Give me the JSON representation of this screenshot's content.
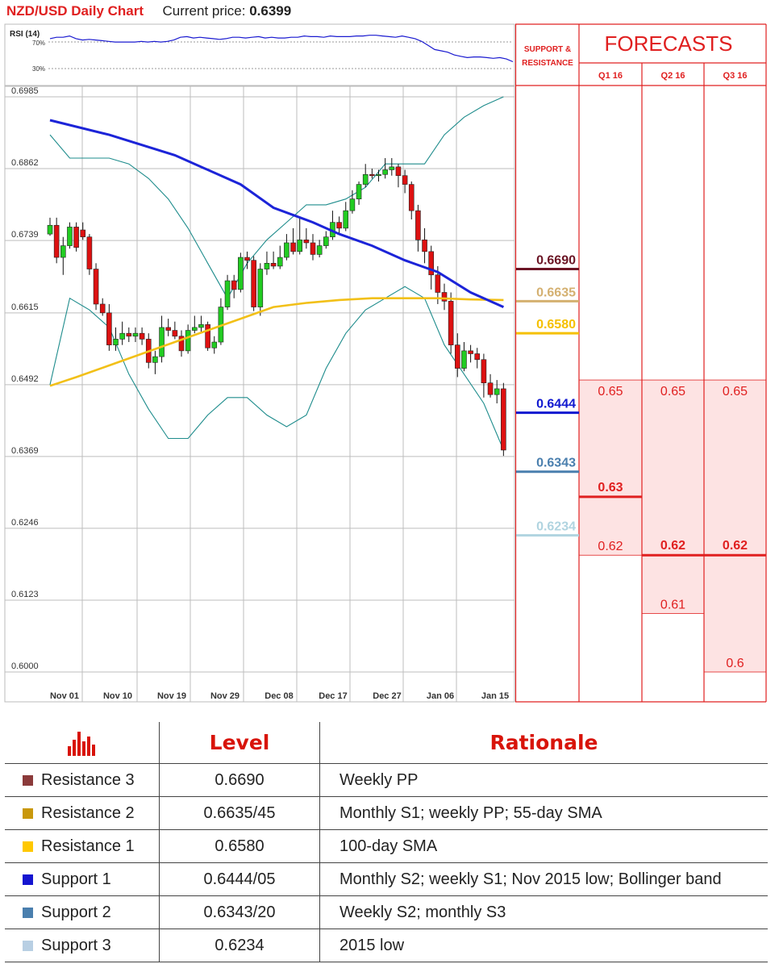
{
  "header": {
    "title": "NZD/USD Daily Chart",
    "price_label": "Current price:",
    "price": "0.6399"
  },
  "rsi": {
    "label": "RSI (14)",
    "upper": "70%",
    "lower": "30%",
    "values": [
      62,
      64,
      64,
      66,
      62,
      60,
      61,
      60,
      59,
      58,
      57,
      57,
      57,
      57,
      58,
      57,
      58,
      57,
      58,
      60,
      64,
      65,
      63,
      64,
      63,
      62,
      61,
      62,
      64,
      64,
      63,
      64,
      65,
      63,
      64,
      63,
      63,
      64,
      64,
      66,
      65,
      65,
      64,
      66,
      65,
      65,
      65,
      66,
      66,
      67,
      67,
      66,
      65,
      64,
      66,
      64,
      62,
      58,
      52,
      46,
      44,
      42,
      38,
      36,
      34,
      35,
      35,
      34,
      33,
      34,
      32,
      28
    ]
  },
  "chart_data": {
    "type": "candlestick",
    "title": "NZD/USD Daily Chart",
    "ylim": [
      0.6,
      0.6985
    ],
    "yticks": [
      "0.6985",
      "0.6862",
      "0.6739",
      "0.6615",
      "0.6492",
      "0.6369",
      "0.6246",
      "0.6123",
      "0.6000"
    ],
    "xticks": [
      "Nov 01",
      "Nov 10",
      "Nov 19",
      "Nov 29",
      "Dec 08",
      "Dec 17",
      "Dec 27",
      "Jan 06",
      "Jan 15"
    ],
    "candles": [
      [
        0.675,
        0.6765,
        0.6778,
        0.6747
      ],
      [
        0.6765,
        0.671,
        0.6778,
        0.67
      ],
      [
        0.671,
        0.673,
        0.6745,
        0.668
      ],
      [
        0.673,
        0.6762,
        0.677,
        0.6725
      ],
      [
        0.6762,
        0.6727,
        0.677,
        0.672
      ],
      [
        0.6757,
        0.6745,
        0.677,
        0.674
      ],
      [
        0.6745,
        0.669,
        0.675,
        0.668
      ],
      [
        0.669,
        0.663,
        0.67,
        0.662
      ],
      [
        0.663,
        0.6615,
        0.664,
        0.661
      ],
      [
        0.6615,
        0.656,
        0.663,
        0.655
      ],
      [
        0.656,
        0.657,
        0.659,
        0.655
      ],
      [
        0.657,
        0.658,
        0.66,
        0.656
      ],
      [
        0.658,
        0.6575,
        0.659,
        0.6565
      ],
      [
        0.6575,
        0.658,
        0.659,
        0.6565
      ],
      [
        0.658,
        0.657,
        0.659,
        0.656
      ],
      [
        0.657,
        0.653,
        0.658,
        0.652
      ],
      [
        0.653,
        0.654,
        0.655,
        0.651
      ],
      [
        0.654,
        0.659,
        0.661,
        0.653
      ],
      [
        0.659,
        0.6585,
        0.6605,
        0.6575
      ],
      [
        0.6585,
        0.6575,
        0.66,
        0.657
      ],
      [
        0.6575,
        0.655,
        0.6585,
        0.654
      ],
      [
        0.655,
        0.6585,
        0.6595,
        0.6545
      ],
      [
        0.6585,
        0.659,
        0.661,
        0.658
      ],
      [
        0.659,
        0.6595,
        0.661,
        0.658
      ],
      [
        0.6595,
        0.6555,
        0.66,
        0.655
      ],
      [
        0.6555,
        0.6565,
        0.6575,
        0.6545
      ],
      [
        0.6565,
        0.6625,
        0.664,
        0.656
      ],
      [
        0.6625,
        0.667,
        0.668,
        0.662
      ],
      [
        0.667,
        0.6655,
        0.668,
        0.664
      ],
      [
        0.6655,
        0.671,
        0.6718,
        0.665
      ],
      [
        0.671,
        0.6705,
        0.672,
        0.669
      ],
      [
        0.6705,
        0.6625,
        0.6712,
        0.6618
      ],
      [
        0.6625,
        0.669,
        0.67,
        0.661
      ],
      [
        0.669,
        0.67,
        0.672,
        0.668
      ],
      [
        0.67,
        0.6695,
        0.672,
        0.669
      ],
      [
        0.6695,
        0.671,
        0.673,
        0.669
      ],
      [
        0.671,
        0.6735,
        0.675,
        0.6705
      ],
      [
        0.6735,
        0.672,
        0.676,
        0.6715
      ],
      [
        0.672,
        0.674,
        0.678,
        0.6715
      ],
      [
        0.674,
        0.6735,
        0.676,
        0.6725
      ],
      [
        0.6735,
        0.6715,
        0.675,
        0.6705
      ],
      [
        0.6715,
        0.673,
        0.674,
        0.671
      ],
      [
        0.673,
        0.6745,
        0.6755,
        0.6725
      ],
      [
        0.6745,
        0.677,
        0.679,
        0.674
      ],
      [
        0.677,
        0.676,
        0.678,
        0.675
      ],
      [
        0.676,
        0.679,
        0.6805,
        0.6755
      ],
      [
        0.679,
        0.681,
        0.6825,
        0.6785
      ],
      [
        0.681,
        0.6835,
        0.684,
        0.68
      ],
      [
        0.6835,
        0.6852,
        0.687,
        0.683
      ],
      [
        0.6852,
        0.685,
        0.6862,
        0.6845
      ],
      [
        0.685,
        0.6852,
        0.686,
        0.684
      ],
      [
        0.6852,
        0.686,
        0.688,
        0.6845
      ],
      [
        0.686,
        0.6865,
        0.688,
        0.685
      ],
      [
        0.6865,
        0.685,
        0.687,
        0.683
      ],
      [
        0.685,
        0.6835,
        0.686,
        0.682
      ],
      [
        0.6835,
        0.679,
        0.684,
        0.6775
      ],
      [
        0.679,
        0.674,
        0.68,
        0.672
      ],
      [
        0.674,
        0.672,
        0.676,
        0.67
      ],
      [
        0.672,
        0.668,
        0.673,
        0.6655
      ],
      [
        0.668,
        0.665,
        0.6695,
        0.663
      ],
      [
        0.665,
        0.6635,
        0.6665,
        0.662
      ],
      [
        0.6635,
        0.656,
        0.665,
        0.6545
      ],
      [
        0.656,
        0.652,
        0.658,
        0.6505
      ],
      [
        0.652,
        0.655,
        0.6565,
        0.6515
      ],
      [
        0.655,
        0.6545,
        0.656,
        0.653
      ],
      [
        0.6545,
        0.6535,
        0.6555,
        0.652
      ],
      [
        0.6535,
        0.6495,
        0.6545,
        0.647
      ],
      [
        0.6495,
        0.6475,
        0.651,
        0.647
      ],
      [
        0.6475,
        0.6485,
        0.65,
        0.646
      ],
      [
        0.6485,
        0.638,
        0.6495,
        0.637
      ]
    ],
    "sma_100": [
      [
        0,
        0.649
      ],
      [
        4,
        0.6505
      ],
      [
        9,
        0.6525
      ],
      [
        14,
        0.6545
      ],
      [
        19,
        0.6565
      ],
      [
        24,
        0.6585
      ],
      [
        29,
        0.6605
      ],
      [
        34,
        0.6625
      ],
      [
        39,
        0.6632
      ],
      [
        44,
        0.6637
      ],
      [
        49,
        0.664
      ],
      [
        54,
        0.664
      ],
      [
        59,
        0.664
      ],
      [
        64,
        0.6638
      ],
      [
        69,
        0.6637
      ]
    ],
    "sma_55": [
      [
        0,
        0.6945
      ],
      [
        9,
        0.692
      ],
      [
        19,
        0.6885
      ],
      [
        29,
        0.6835
      ],
      [
        34,
        0.6795
      ],
      [
        40,
        0.677
      ],
      [
        44,
        0.675
      ],
      [
        49,
        0.673
      ],
      [
        54,
        0.6705
      ],
      [
        59,
        0.6685
      ],
      [
        64,
        0.665
      ],
      [
        69,
        0.6625
      ]
    ],
    "bb_upper": [
      [
        0,
        0.692
      ],
      [
        3,
        0.688
      ],
      [
        6,
        0.688
      ],
      [
        9,
        0.688
      ],
      [
        12,
        0.687
      ],
      [
        15,
        0.6845
      ],
      [
        18,
        0.681
      ],
      [
        21,
        0.676
      ],
      [
        24,
        0.67
      ],
      [
        27,
        0.664
      ],
      [
        30,
        0.67
      ],
      [
        33,
        0.674
      ],
      [
        36,
        0.677
      ],
      [
        39,
        0.68
      ],
      [
        42,
        0.68
      ],
      [
        45,
        0.681
      ],
      [
        48,
        0.683
      ],
      [
        51,
        0.687
      ],
      [
        54,
        0.687
      ],
      [
        57,
        0.687
      ],
      [
        60,
        0.692
      ],
      [
        63,
        0.695
      ],
      [
        66,
        0.697
      ],
      [
        69,
        0.6985
      ]
    ],
    "bb_lower": [
      [
        0,
        0.6492
      ],
      [
        3,
        0.664
      ],
      [
        6,
        0.662
      ],
      [
        9,
        0.659
      ],
      [
        12,
        0.651
      ],
      [
        15,
        0.645
      ],
      [
        18,
        0.64
      ],
      [
        21,
        0.64
      ],
      [
        24,
        0.644
      ],
      [
        27,
        0.647
      ],
      [
        30,
        0.647
      ],
      [
        33,
        0.644
      ],
      [
        36,
        0.642
      ],
      [
        39,
        0.644
      ],
      [
        42,
        0.652
      ],
      [
        45,
        0.658
      ],
      [
        48,
        0.662
      ],
      [
        51,
        0.664
      ],
      [
        54,
        0.666
      ],
      [
        57,
        0.664
      ],
      [
        60,
        0.656
      ],
      [
        63,
        0.651
      ],
      [
        66,
        0.646
      ],
      [
        69,
        0.638
      ]
    ]
  },
  "sr_panel": {
    "title_line1": "SUPPORT &",
    "title_line2": "RESISTANCE",
    "levels": [
      {
        "label": "0.6690",
        "value": 0.669,
        "color": "#6b1525"
      },
      {
        "label": "0.6635",
        "value": 0.6635,
        "color": "#d4b070"
      },
      {
        "label": "0.6580",
        "value": 0.658,
        "color": "#f5c000"
      },
      {
        "label": "0.6444",
        "value": 0.6444,
        "color": "#1018d0"
      },
      {
        "label": "0.6343",
        "value": 0.6343,
        "color": "#4a7fae"
      },
      {
        "label": "0.6234",
        "value": 0.6234,
        "color": "#b0d4e0"
      }
    ]
  },
  "forecasts": {
    "title": "FORECASTS",
    "columns": [
      {
        "label": "Q1 16",
        "high": 0.65,
        "low": 0.62,
        "main": 0.63,
        "high_label": "0.65",
        "main_label": "0.63",
        "low_label": "0.62"
      },
      {
        "label": "Q2 16",
        "high": 0.65,
        "low": 0.61,
        "main": 0.62,
        "high_label": "0.65",
        "main_label": "0.62",
        "low_label": "0.61"
      },
      {
        "label": "Q3 16",
        "high": 0.65,
        "low": 0.6,
        "main": 0.62,
        "high_label": "0.65",
        "main_label": "0.62",
        "low_label": "0.6"
      }
    ]
  },
  "table": {
    "level_header": "Level",
    "rationale_header": "Rationale",
    "rows": [
      {
        "name": "Resistance 3",
        "color": "#8b3a3a",
        "level": "0.6690",
        "rationale": "Weekly PP"
      },
      {
        "name": "Resistance 2",
        "color": "#c9980c",
        "level": "0.6635/45",
        "rationale": "Monthly S1; weekly PP; 55-day SMA"
      },
      {
        "name": "Resistance 1",
        "color": "#ffc800",
        "level": "0.6580",
        "rationale": "100-day SMA"
      },
      {
        "name": "Support 1",
        "color": "#1414d0",
        "level": "0.6444/05",
        "rationale": "Monthly S2; weekly S1; Nov 2015 low; Bollinger band"
      },
      {
        "name": "Support 2",
        "color": "#4a7fae",
        "level": "0.6343/20",
        "rationale": "Weekly S2; monthly S3"
      },
      {
        "name": "Support 3",
        "color": "#b8cfe3",
        "level": "0.6234",
        "rationale": "2015 low"
      }
    ]
  },
  "colors": {
    "accent_red": "#e02020",
    "bull": "#22cc22",
    "bear": "#dd1111",
    "forecast_fill": "#fde3e3"
  }
}
